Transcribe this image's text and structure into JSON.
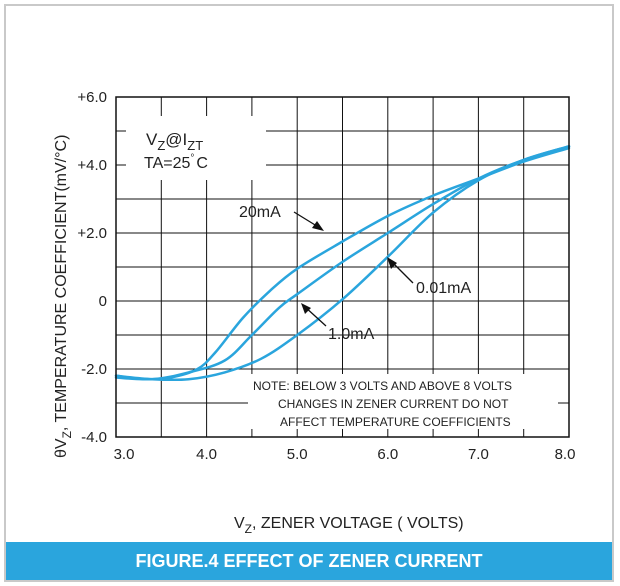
{
  "chart_data": {
    "type": "line",
    "ylabel_symbol": "θV",
    "ylabel_sub": "Z",
    "ylabel_text": ",  TEMPERATURE COEFFICIENT(mV/°C)",
    "xlabel_prefix": "V",
    "xlabel_sub": "Z",
    "xlabel_text": ", ZENER VOLTAGE ( VOLTS)",
    "xlim": [
      3.0,
      8.0
    ],
    "ylim": [
      -4.0,
      6.0
    ],
    "x_ticks": [
      "3.0",
      "4.0",
      "5.0",
      "6.0",
      "7.0",
      "8.0"
    ],
    "y_ticks": [
      "-4.0",
      "-2.0",
      "0",
      "+2.0",
      "+4.0",
      "+6.0"
    ],
    "grid": true,
    "line_color": "#2aa5dd",
    "series": [
      {
        "name": "20mA",
        "x": [
          3.0,
          3.3,
          3.6,
          3.9,
          4.1,
          4.4,
          4.7,
          5.0,
          5.5,
          6.0,
          6.5,
          7.0,
          7.5,
          8.0
        ],
        "y": [
          -2.25,
          -2.3,
          -2.25,
          -2.0,
          -1.5,
          -0.5,
          0.3,
          0.95,
          1.75,
          2.5,
          3.1,
          3.6,
          4.1,
          4.5
        ]
      },
      {
        "name": "1.0mA",
        "x": [
          3.0,
          3.4,
          3.8,
          4.2,
          4.5,
          4.8,
          5.0,
          5.5,
          6.0,
          6.5,
          7.0,
          7.5,
          8.0
        ],
        "y": [
          -2.2,
          -2.3,
          -2.1,
          -1.75,
          -1.0,
          -0.2,
          0.2,
          1.15,
          2.0,
          2.85,
          3.6,
          4.15,
          4.55
        ]
      },
      {
        "name": "0.01mA",
        "x": [
          3.0,
          3.4,
          3.8,
          4.2,
          4.6,
          5.0,
          5.5,
          6.0,
          6.5,
          7.0,
          7.5,
          8.0
        ],
        "y": [
          -2.2,
          -2.3,
          -2.3,
          -2.1,
          -1.7,
          -1.0,
          0.05,
          1.3,
          2.6,
          3.55,
          4.15,
          4.55
        ]
      }
    ],
    "series_labels": [
      {
        "text": "20mA",
        "for": "20mA"
      },
      {
        "text": "0.01mA",
        "for": "0.01mA"
      },
      {
        "text": "1.0mA",
        "for": "1.0mA"
      }
    ],
    "condition": {
      "v": "V",
      "z_sub": "Z",
      "at": "@I",
      "zt_sub": "ZT",
      "ta": "TA=25",
      "deg": "°",
      "c": "C"
    },
    "note_lines": [
      "NOTE: BELOW 3 VOLTS AND ABOVE 8 VOLTS",
      "CHANGES IN ZENER CURRENT DO NOT",
      "AFFECT TEMPERATURE COEFFICIENTS"
    ]
  },
  "caption": "FIGURE.4 EFFECT OF ZENER CURRENT"
}
